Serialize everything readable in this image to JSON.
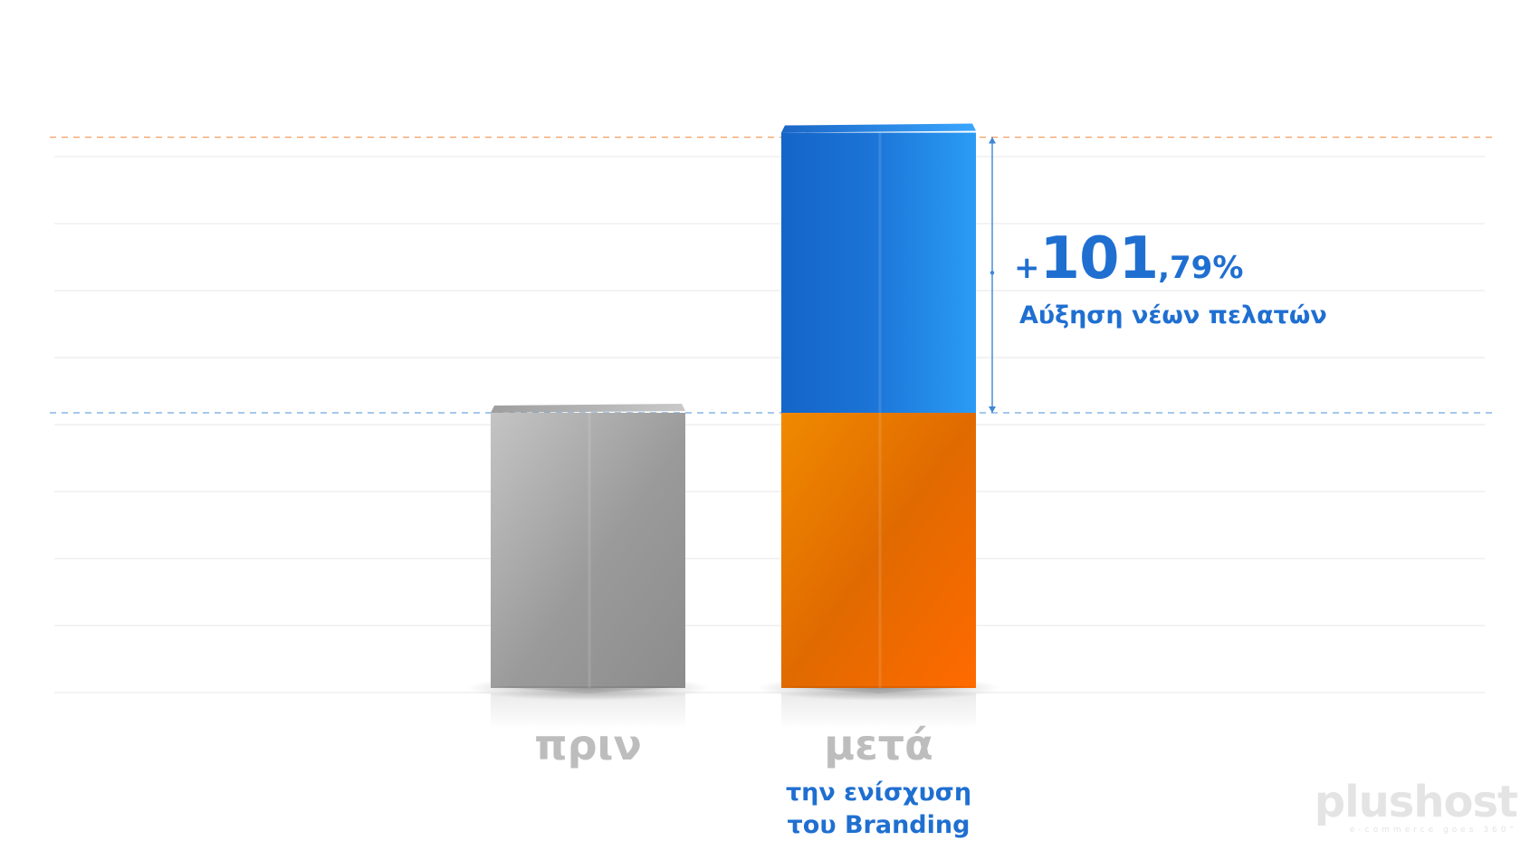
{
  "chart_data": {
    "type": "bar",
    "categories": [
      "πριν",
      "μετά"
    ],
    "category_sublabels": [
      "",
      "την ενίσχυση\nτου Branding"
    ],
    "series": [
      {
        "values": [
          100,
          100
        ],
        "colors": [
          "#a8a8a8",
          "#ff8a00"
        ]
      },
      {
        "values": [
          0,
          101.79
        ],
        "colors": [
          "#a8a8a8",
          "#1f86e6"
        ]
      }
    ],
    "ylim": [
      0,
      210
    ],
    "grid": true,
    "annotation": {
      "plus": "+",
      "value_int": "101",
      "value_dec": ",79%",
      "label": "Αύξηση νέων πελατών"
    }
  },
  "logo": {
    "text": "plushost",
    "tagline": "e-commerce goes 360°"
  }
}
